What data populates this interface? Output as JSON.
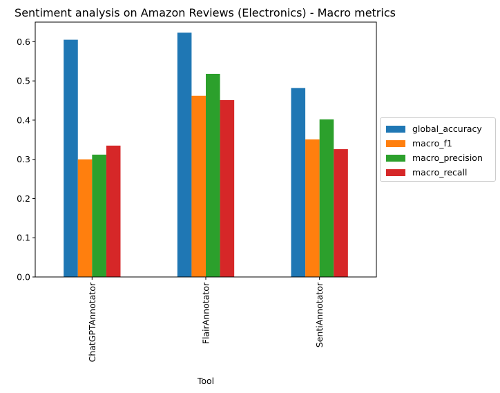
{
  "chart_data": {
    "type": "bar",
    "title": "Sentiment analysis on Amazon Reviews (Electronics) - Macro metrics",
    "xlabel": "Tool",
    "ylabel": "",
    "categories": [
      "ChatGPTAnnotator",
      "FlairAnnotator",
      "SentiAnnotator"
    ],
    "series": [
      {
        "name": "global_accuracy",
        "color": "#1f77b4",
        "values": [
          0.605,
          0.623,
          0.482
        ]
      },
      {
        "name": "macro_f1",
        "color": "#ff7f0e",
        "values": [
          0.3,
          0.462,
          0.351
        ]
      },
      {
        "name": "macro_precision",
        "color": "#2ca02c",
        "values": [
          0.312,
          0.518,
          0.402
        ]
      },
      {
        "name": "macro_recall",
        "color": "#d62728",
        "values": [
          0.335,
          0.451,
          0.326
        ]
      }
    ],
    "ylim": [
      0,
      0.65
    ],
    "yticks": [
      "0.0",
      "0.1",
      "0.2",
      "0.3",
      "0.4",
      "0.5",
      "0.6"
    ],
    "grid": false,
    "legend_position": "center-right outside"
  }
}
